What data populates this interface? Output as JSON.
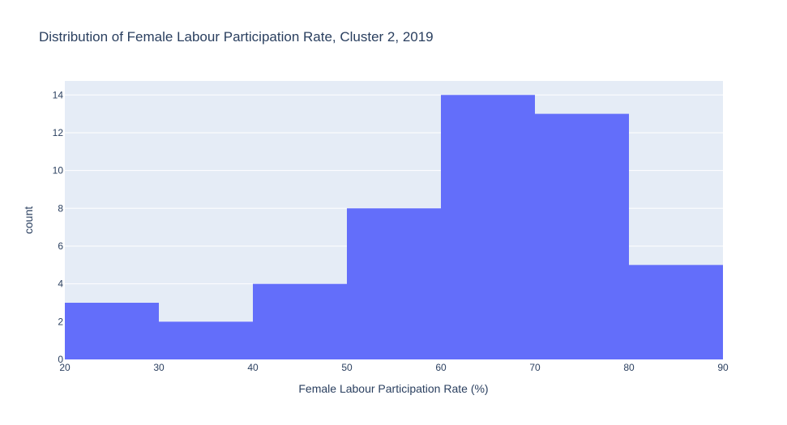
{
  "chart_data": {
    "type": "histogram",
    "title": "Distribution of Female Labour Participation Rate, Cluster 2, 2019",
    "xlabel": "Female Labour Participation Rate (%)",
    "ylabel": "count",
    "xlim": [
      20,
      90
    ],
    "ylim": [
      0,
      14.74
    ],
    "x_ticks": [
      20,
      30,
      40,
      50,
      60,
      70,
      80,
      90
    ],
    "y_ticks": [
      0,
      2,
      4,
      6,
      8,
      10,
      12,
      14
    ],
    "bins": [
      {
        "start": 20,
        "end": 30,
        "count": 3
      },
      {
        "start": 30,
        "end": 40,
        "count": 2
      },
      {
        "start": 40,
        "end": 50,
        "count": 4
      },
      {
        "start": 50,
        "end": 60,
        "count": 8
      },
      {
        "start": 60,
        "end": 70,
        "count": 14
      },
      {
        "start": 70,
        "end": 80,
        "count": 13
      },
      {
        "start": 80,
        "end": 90,
        "count": 5
      }
    ],
    "grid": true,
    "colors": {
      "bar": "#636efa",
      "plot_background": "#e5ecf6",
      "grid": "#ffffff",
      "text": "#2a3f5f"
    }
  }
}
